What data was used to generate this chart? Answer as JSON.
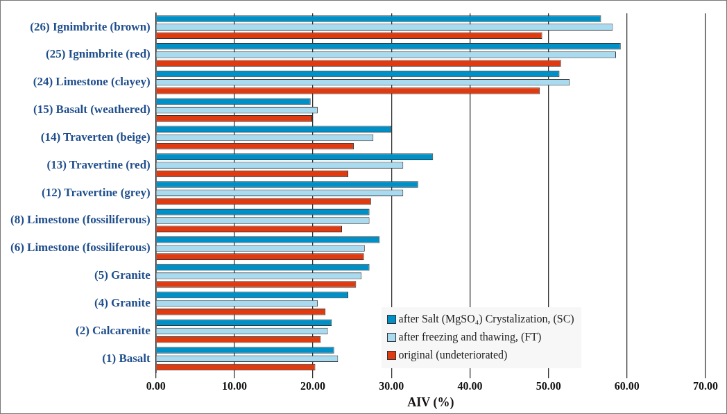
{
  "chart_data": {
    "type": "bar",
    "orientation": "horizontal",
    "xlabel": "AIV (%)",
    "categories": [
      "(26) Ignimbrite (brown)",
      "(25) Ignimbrite (red)",
      "(24) Limestone (clayey)",
      "(15) Basalt (weathered)",
      "(14) Traverten (beige)",
      "(13) Travertine (red)",
      "(12) Travertine (grey)",
      "(8) Limestone (fossiliferous)",
      "(6) Limestone (fossiliferous)",
      "(5) Granite",
      "(4) Granite",
      "(2) Calcarenite",
      "(1) Basalt"
    ],
    "series": [
      {
        "name": "after Salt (MgSO₄) Crystalization, (SC)",
        "color": "#0090c8",
        "values": [
          56.7,
          59.2,
          51.4,
          19.7,
          30.0,
          35.3,
          33.4,
          27.2,
          28.5,
          27.2,
          24.5,
          22.4,
          22.7
        ]
      },
      {
        "name": "after freezing and thawing, (FT)",
        "color": "#a8daf0",
        "values": [
          58.2,
          58.6,
          52.7,
          20.6,
          27.7,
          31.5,
          31.5,
          27.2,
          26.6,
          26.2,
          20.6,
          21.9,
          23.2
        ]
      },
      {
        "name": "original (undeteriorated)",
        "color": "#e03a10",
        "values": [
          49.2,
          51.6,
          48.9,
          19.9,
          25.2,
          24.5,
          27.4,
          23.7,
          26.5,
          25.5,
          21.6,
          21.0,
          20.3
        ]
      }
    ],
    "xlim": [
      0,
      70
    ],
    "xticks": [
      {
        "value": 0,
        "label": "0.00"
      },
      {
        "value": 10,
        "label": "10.00"
      },
      {
        "value": 20,
        "label": "20.00"
      },
      {
        "value": 30,
        "label": "30.00"
      },
      {
        "value": 40,
        "label": "40.00"
      },
      {
        "value": 50,
        "label": "50.00"
      },
      {
        "value": 60,
        "label": "60.00"
      },
      {
        "value": 70,
        "label": "70.00"
      }
    ],
    "grid": "x",
    "legend": "bottom right"
  }
}
